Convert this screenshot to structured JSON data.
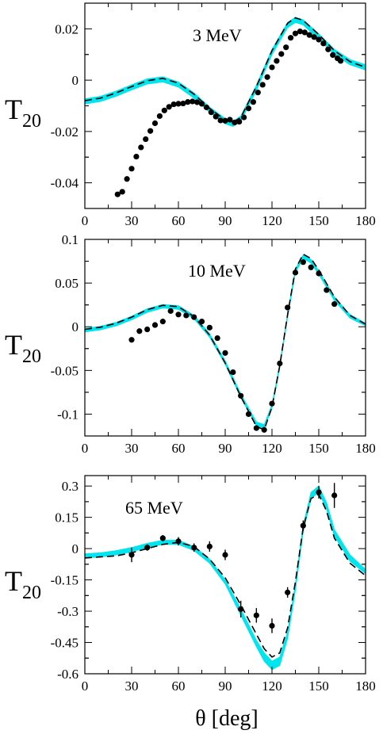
{
  "figure": {
    "xlabel": "θ  [deg]"
  },
  "chart_data": [
    {
      "type": "line",
      "energy_label": "3 MeV",
      "ylabel_main": "T",
      "ylabel_sub": "20",
      "xlim": [
        0,
        180
      ],
      "ylim": [
        -0.05,
        0.03
      ],
      "xticks": [
        0,
        30,
        60,
        90,
        120,
        150,
        180
      ],
      "xtick_labels": [
        "0",
        "30",
        "60",
        "90",
        "120",
        "150",
        "180"
      ],
      "yticks": [
        -0.04,
        -0.02,
        0,
        0.02
      ],
      "ytick_labels": [
        "-0.04",
        "-0.02",
        "0",
        "0.02"
      ],
      "band": {
        "x": [
          0,
          10,
          20,
          30,
          40,
          50,
          60,
          70,
          80,
          90,
          95,
          100,
          110,
          120,
          130,
          135,
          140,
          150,
          160,
          170,
          180
        ],
        "y_low": [
          -0.0093,
          -0.0083,
          -0.0063,
          -0.0038,
          -0.0015,
          -0.0007,
          -0.0027,
          -0.007,
          -0.0125,
          -0.017,
          -0.018,
          -0.016,
          -0.004,
          0.01,
          0.0205,
          0.0225,
          0.0215,
          0.016,
          0.01,
          0.006,
          0.004
        ],
        "y_high": [
          -0.0073,
          -0.0063,
          -0.0043,
          -0.0018,
          0.0005,
          0.0013,
          -0.0007,
          -0.005,
          -0.0105,
          -0.015,
          -0.016,
          -0.014,
          -0.002,
          0.012,
          0.0225,
          0.0245,
          0.0235,
          0.018,
          0.012,
          0.008,
          0.006
        ]
      },
      "dashed": {
        "x": [
          0,
          10,
          20,
          30,
          40,
          50,
          60,
          70,
          80,
          90,
          95,
          100,
          110,
          120,
          130,
          135,
          140,
          150,
          160,
          170,
          180
        ],
        "y": [
          -0.008,
          -0.007,
          -0.005,
          -0.0025,
          -0.0002,
          0.0007,
          -0.0012,
          -0.0055,
          -0.011,
          -0.0155,
          -0.0165,
          -0.0145,
          -0.0025,
          0.0115,
          0.0222,
          0.0243,
          0.0233,
          0.0178,
          0.0115,
          0.0072,
          0.005
        ]
      },
      "points": {
        "x": [
          21,
          24,
          27,
          30,
          33,
          36,
          39,
          42,
          45,
          48,
          51,
          54,
          57,
          60,
          63,
          66,
          69,
          72,
          75,
          78,
          81,
          84,
          87,
          90,
          93,
          96,
          99,
          102,
          105,
          108,
          111,
          114,
          117,
          120,
          123,
          126,
          129,
          132,
          135,
          138,
          141,
          144,
          147,
          150,
          153,
          156,
          159,
          162,
          164
        ],
        "y": [
          -0.0445,
          -0.0435,
          -0.0385,
          -0.0345,
          -0.0298,
          -0.0262,
          -0.023,
          -0.0198,
          -0.0168,
          -0.014,
          -0.0118,
          -0.0104,
          -0.0094,
          -0.0092,
          -0.0091,
          -0.0085,
          -0.0083,
          -0.0086,
          -0.0092,
          -0.0106,
          -0.0125,
          -0.0142,
          -0.0157,
          -0.0158,
          -0.0154,
          -0.0165,
          -0.0162,
          -0.0145,
          -0.011,
          -0.0085,
          -0.0048,
          -0.0018,
          0.0012,
          0.005,
          0.0075,
          0.0102,
          0.0128,
          0.0165,
          0.0182,
          0.019,
          0.0186,
          0.0176,
          0.0168,
          0.0158,
          0.0143,
          0.012,
          0.0098,
          0.0085,
          0.0075
        ]
      }
    },
    {
      "type": "line",
      "energy_label": "10 MeV",
      "ylabel_main": "T",
      "ylabel_sub": "20",
      "xlim": [
        0,
        180
      ],
      "ylim": [
        -0.125,
        0.1
      ],
      "xticks": [
        0,
        30,
        60,
        90,
        120,
        150,
        180
      ],
      "xtick_labels": [
        "0",
        "30",
        "60",
        "90",
        "120",
        "150",
        "180"
      ],
      "yticks": [
        -0.1,
        -0.05,
        0,
        0.05,
        0.1
      ],
      "ytick_labels": [
        "-0.1",
        "-0.05",
        "0",
        "0.05",
        "0.1"
      ],
      "band": {
        "x": [
          0,
          10,
          20,
          30,
          40,
          50,
          60,
          70,
          80,
          90,
          100,
          110,
          115,
          120,
          125,
          130,
          135,
          140,
          145,
          150,
          160,
          170,
          180
        ],
        "y_low": [
          -0.006,
          -0.0035,
          0.001,
          0.008,
          0.0165,
          0.0215,
          0.02,
          0.009,
          -0.012,
          -0.043,
          -0.081,
          -0.113,
          -0.116,
          -0.093,
          -0.047,
          0.011,
          0.062,
          0.078,
          0.073,
          0.06,
          0.03,
          0.01,
          0.001
        ],
        "y_high": [
          -0.002,
          0.0005,
          0.005,
          0.012,
          0.0205,
          0.0255,
          0.024,
          0.013,
          -0.008,
          -0.039,
          -0.077,
          -0.109,
          -0.112,
          -0.089,
          -0.043,
          0.015,
          0.066,
          0.082,
          0.077,
          0.064,
          0.034,
          0.014,
          0.004
        ]
      },
      "dashed": {
        "x": [
          0,
          10,
          20,
          30,
          40,
          50,
          60,
          70,
          80,
          90,
          100,
          110,
          115,
          120,
          125,
          130,
          135,
          140,
          145,
          150,
          160,
          170,
          180
        ],
        "y": [
          -0.003,
          -0.0005,
          0.004,
          0.011,
          0.0195,
          0.0245,
          0.023,
          0.0115,
          -0.0095,
          -0.0415,
          -0.08,
          -0.114,
          -0.118,
          -0.092,
          -0.0445,
          0.014,
          0.066,
          0.083,
          0.078,
          0.065,
          0.034,
          0.013,
          0.003
        ]
      },
      "points": {
        "x": [
          30,
          35,
          40,
          45,
          50,
          55,
          60,
          65,
          70,
          75,
          80,
          85,
          90,
          95,
          100,
          105,
          110,
          115,
          120,
          125,
          130,
          135,
          140,
          145,
          150,
          155,
          160
        ],
        "y": [
          -0.015,
          -0.005,
          -0.003,
          0.002,
          0.006,
          0.018,
          0.014,
          0.013,
          0.011,
          0.006,
          -0.001,
          -0.013,
          -0.03,
          -0.052,
          -0.079,
          -0.1,
          -0.116,
          -0.118,
          -0.088,
          -0.042,
          0.022,
          0.062,
          0.074,
          0.068,
          0.061,
          0.042,
          0.026
        ]
      }
    },
    {
      "type": "line",
      "energy_label": "65 MeV",
      "ylabel_main": "T",
      "ylabel_sub": "20",
      "xlim": [
        0,
        180
      ],
      "ylim": [
        -0.6,
        0.35
      ],
      "xticks": [
        0,
        30,
        60,
        90,
        120,
        150,
        180
      ],
      "xtick_labels": [
        "0",
        "30",
        "60",
        "90",
        "120",
        "150",
        "180"
      ],
      "yticks": [
        -0.6,
        -0.45,
        -0.3,
        -0.15,
        0,
        0.15,
        0.3
      ],
      "ytick_labels": [
        "-0.6",
        "-0.45",
        "-0.3",
        "-0.15",
        "0",
        "0.15",
        "0.3"
      ],
      "band": {
        "x": [
          0,
          10,
          20,
          30,
          40,
          50,
          60,
          70,
          80,
          90,
          100,
          110,
          115,
          120,
          125,
          130,
          135,
          140,
          145,
          150,
          155,
          160,
          170,
          180
        ],
        "y_low": [
          -0.045,
          -0.04,
          -0.03,
          -0.015,
          0.005,
          0.02,
          0.02,
          -0.01,
          -0.07,
          -0.17,
          -0.32,
          -0.47,
          -0.54,
          -0.58,
          -0.56,
          -0.43,
          -0.2,
          0.08,
          0.24,
          0.27,
          0.19,
          0.06,
          -0.06,
          -0.12
        ],
        "y_high": [
          -0.025,
          -0.02,
          -0.01,
          0.005,
          0.025,
          0.04,
          0.04,
          0.01,
          -0.05,
          -0.15,
          -0.29,
          -0.44,
          -0.5,
          -0.54,
          -0.52,
          -0.4,
          -0.17,
          0.11,
          0.27,
          0.3,
          0.22,
          0.09,
          -0.03,
          -0.1
        ]
      },
      "dashed": {
        "x": [
          0,
          10,
          20,
          30,
          40,
          50,
          60,
          70,
          80,
          90,
          100,
          110,
          115,
          120,
          125,
          130,
          135,
          140,
          145,
          150,
          155,
          160,
          170,
          180
        ],
        "y": [
          -0.045,
          -0.04,
          -0.035,
          -0.02,
          0.0,
          0.02,
          0.03,
          0.01,
          -0.05,
          -0.14,
          -0.27,
          -0.41,
          -0.48,
          -0.52,
          -0.5,
          -0.38,
          -0.16,
          0.1,
          0.24,
          0.26,
          0.18,
          0.05,
          -0.07,
          -0.13
        ]
      },
      "points": {
        "x": [
          30,
          40,
          50,
          60,
          70,
          80,
          90,
          100,
          110,
          120,
          130,
          140,
          150,
          160
        ],
        "y": [
          -0.03,
          0.005,
          0.05,
          0.035,
          0.005,
          0.01,
          -0.03,
          -0.29,
          -0.32,
          -0.37,
          -0.21,
          0.11,
          0.27,
          0.255
        ],
        "err": [
          0.035,
          0.015,
          0.015,
          0.02,
          0.02,
          0.025,
          0.025,
          0.04,
          0.035,
          0.035,
          0.025,
          0.025,
          0.03,
          0.06
        ]
      }
    }
  ]
}
